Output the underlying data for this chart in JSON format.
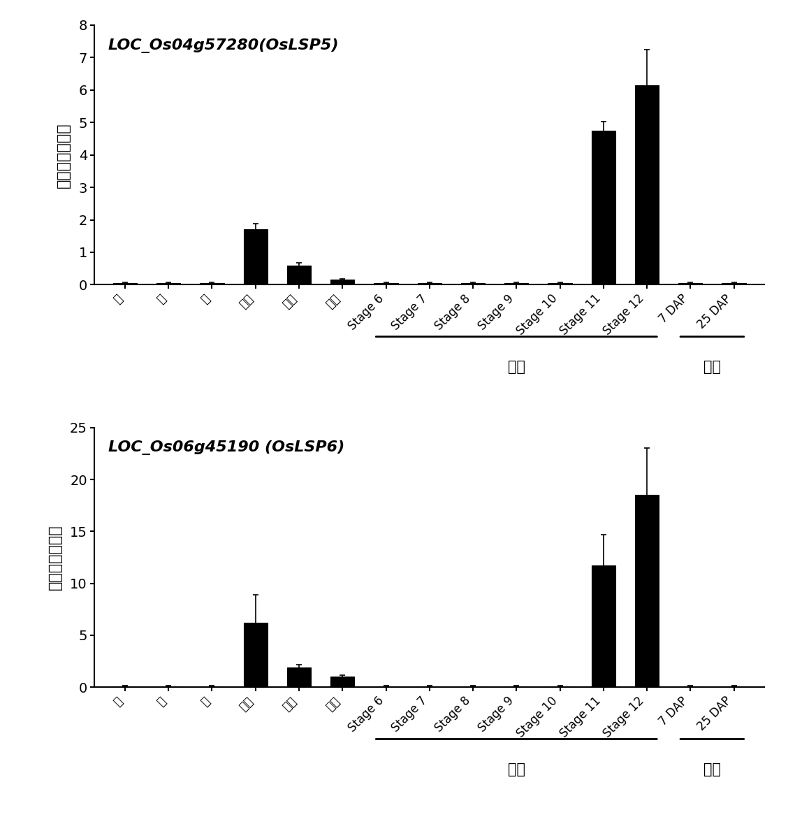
{
  "chart1": {
    "title": "LOC_Os04g57280(OsLSP5)",
    "ylabel": "相对基因表达量",
    "ylim": [
      0,
      8
    ],
    "yticks": [
      0,
      1,
      2,
      3,
      4,
      5,
      6,
      7,
      8
    ],
    "values": [
      0.05,
      0.05,
      0.05,
      1.7,
      0.6,
      0.15,
      0.05,
      0.05,
      0.05,
      0.05,
      0.05,
      4.75,
      6.15,
      0.05,
      0.05
    ],
    "errors": [
      0.03,
      0.03,
      0.03,
      0.18,
      0.08,
      0.04,
      0.03,
      0.03,
      0.03,
      0.03,
      0.03,
      0.28,
      1.1,
      0.03,
      0.03
    ]
  },
  "chart2": {
    "title": "LOC_Os06g45190 (OsLSP6)",
    "ylabel": "相对基因表达量",
    "ylim": [
      0,
      25
    ],
    "yticks": [
      0,
      5,
      10,
      15,
      20,
      25
    ],
    "values": [
      0.1,
      0.1,
      0.1,
      6.2,
      1.9,
      1.0,
      0.1,
      0.1,
      0.1,
      0.1,
      0.1,
      11.7,
      18.5,
      0.1,
      0.1
    ],
    "errors": [
      0.05,
      0.05,
      0.05,
      2.7,
      0.25,
      0.18,
      0.05,
      0.05,
      0.05,
      0.05,
      0.05,
      3.0,
      4.5,
      0.05,
      0.05
    ]
  },
  "categories": [
    "根",
    "茄",
    "叶",
    "内穃",
    "外穃",
    "雄蕊",
    "Stage 6",
    "Stage 7",
    "Stage 8",
    "Stage 9",
    "Stage 10",
    "Stage 11",
    "Stage 12",
    "7 DAP",
    "25 DAP"
  ],
  "huayao_label": "花药",
  "ruru_label": "胚乳",
  "bar_color": "#000000",
  "bg_color": "#ffffff",
  "huayao_indices": [
    6,
    7,
    8,
    9,
    10,
    11,
    12
  ],
  "ruru_indices": [
    13,
    14
  ]
}
